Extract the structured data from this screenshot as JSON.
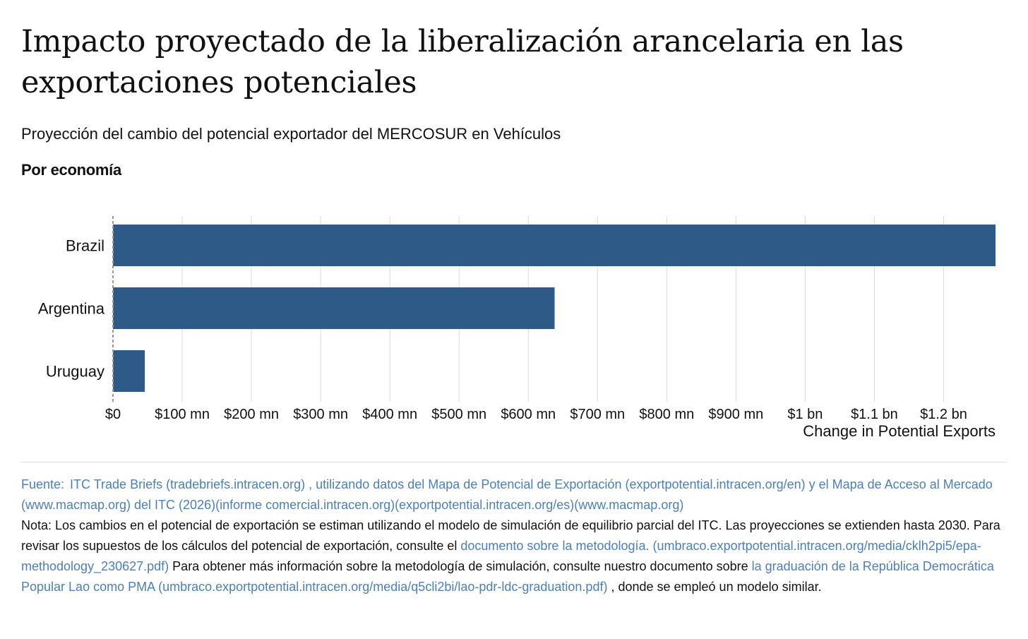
{
  "title": "Impacto proyectado de la liberalización arancelaria en las exportaciones potenciales",
  "subtitle": "Proyección del cambio del potencial exportador del MERCOSUR en Vehículos",
  "section_label": "Por economía",
  "colors": {
    "bar": "#2e5a87",
    "grid": "#d9d9d9",
    "baseline": "#999999",
    "link": "#4a7fbd"
  },
  "chart_data": {
    "type": "bar",
    "orientation": "horizontal",
    "categories": [
      "Brazil",
      "Argentina",
      "Uruguay"
    ],
    "values": [
      1275000000,
      638000000,
      46000000
    ],
    "xlim": [
      0,
      1275000000
    ],
    "ticks": [
      {
        "value": 0,
        "label": "$0"
      },
      {
        "value": 100000000,
        "label": "$100 mn"
      },
      {
        "value": 200000000,
        "label": "$200 mn"
      },
      {
        "value": 300000000,
        "label": "$300 mn"
      },
      {
        "value": 400000000,
        "label": "$400 mn"
      },
      {
        "value": 500000000,
        "label": "$500 mn"
      },
      {
        "value": 600000000,
        "label": "$600 mn"
      },
      {
        "value": 700000000,
        "label": "$700 mn"
      },
      {
        "value": 800000000,
        "label": "$800 mn"
      },
      {
        "value": 900000000,
        "label": "$900 mn"
      },
      {
        "value": 1000000000,
        "label": "$1 bn"
      },
      {
        "value": 1100000000,
        "label": "$1.1 bn"
      },
      {
        "value": 1200000000,
        "label": "$1.2 bn"
      }
    ],
    "xlabel": "Change in Potential Exports",
    "ylabel": "",
    "grid": true
  },
  "footer": {
    "source_label": "Fuente:",
    "source_text": "ITC Trade Briefs (tradebriefs.intracen.org) , utilizando datos del Mapa de Potencial de Exportación (exportpotential.intracen.org/en) y el Mapa de Acceso al Mercado (www.macmap.org) del ITC (2026)(informe comercial.intracen.org)(exportpotential.intracen.org/es)(www.macmap.org)",
    "note_1": "Nota: Los cambios en el potencial de exportación se estiman utilizando el modelo de simulación de equilibrio parcial del ITC. Las proyecciones se extienden hasta 2030. Para revisar los supuestos de los cálculos del potencial de exportación, consulte el ",
    "note_link_1": "documento sobre la metodología. (umbraco.exportpotential.intracen.org/media/cklh2pi5/epa-methodology_230627.pdf)",
    "note_2": " Para obtener más información sobre la metodología de simulación, consulte nuestro documento sobre ",
    "note_link_2": "la graduación de la República Democrática Popular Lao como PMA (umbraco.exportpotential.intracen.org/media/q5cli2bi/lao-pdr-ldc-graduation.pdf)",
    "note_3": " , donde se empleó un modelo similar."
  }
}
